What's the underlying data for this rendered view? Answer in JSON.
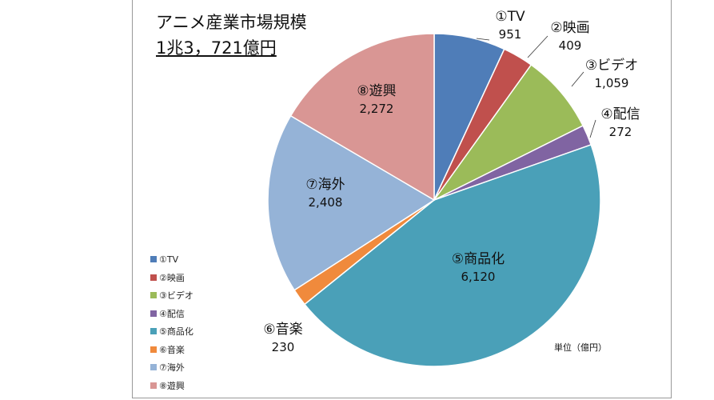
{
  "chart_data": {
    "type": "pie",
    "title": "アニメ産業市場規模",
    "subtitle": "1兆3，721億円",
    "unit_note": "単位（億円）",
    "legend_position": "left-bottom",
    "slices": [
      {
        "name": "①TV",
        "value": 951,
        "label": "951",
        "color": "#4f7db8"
      },
      {
        "name": "②映画",
        "value": 409,
        "label": "409",
        "color": "#c0504d"
      },
      {
        "name": "③ビデオ",
        "value": 1059,
        "label": "1,059",
        "color": "#9bbb59"
      },
      {
        "name": "④配信",
        "value": 272,
        "label": "272",
        "color": "#8064a2"
      },
      {
        "name": "⑤商品化",
        "value": 6120,
        "label": "6,120",
        "color": "#4aa0b8"
      },
      {
        "name": "⑥音楽",
        "value": 230,
        "label": "230",
        "color": "#f08a3c"
      },
      {
        "name": "⑦海外",
        "value": 2408,
        "label": "2,408",
        "color": "#95b3d7"
      },
      {
        "name": "⑧遊興",
        "value": 2272,
        "label": "2,272",
        "color": "#d99694"
      }
    ]
  }
}
